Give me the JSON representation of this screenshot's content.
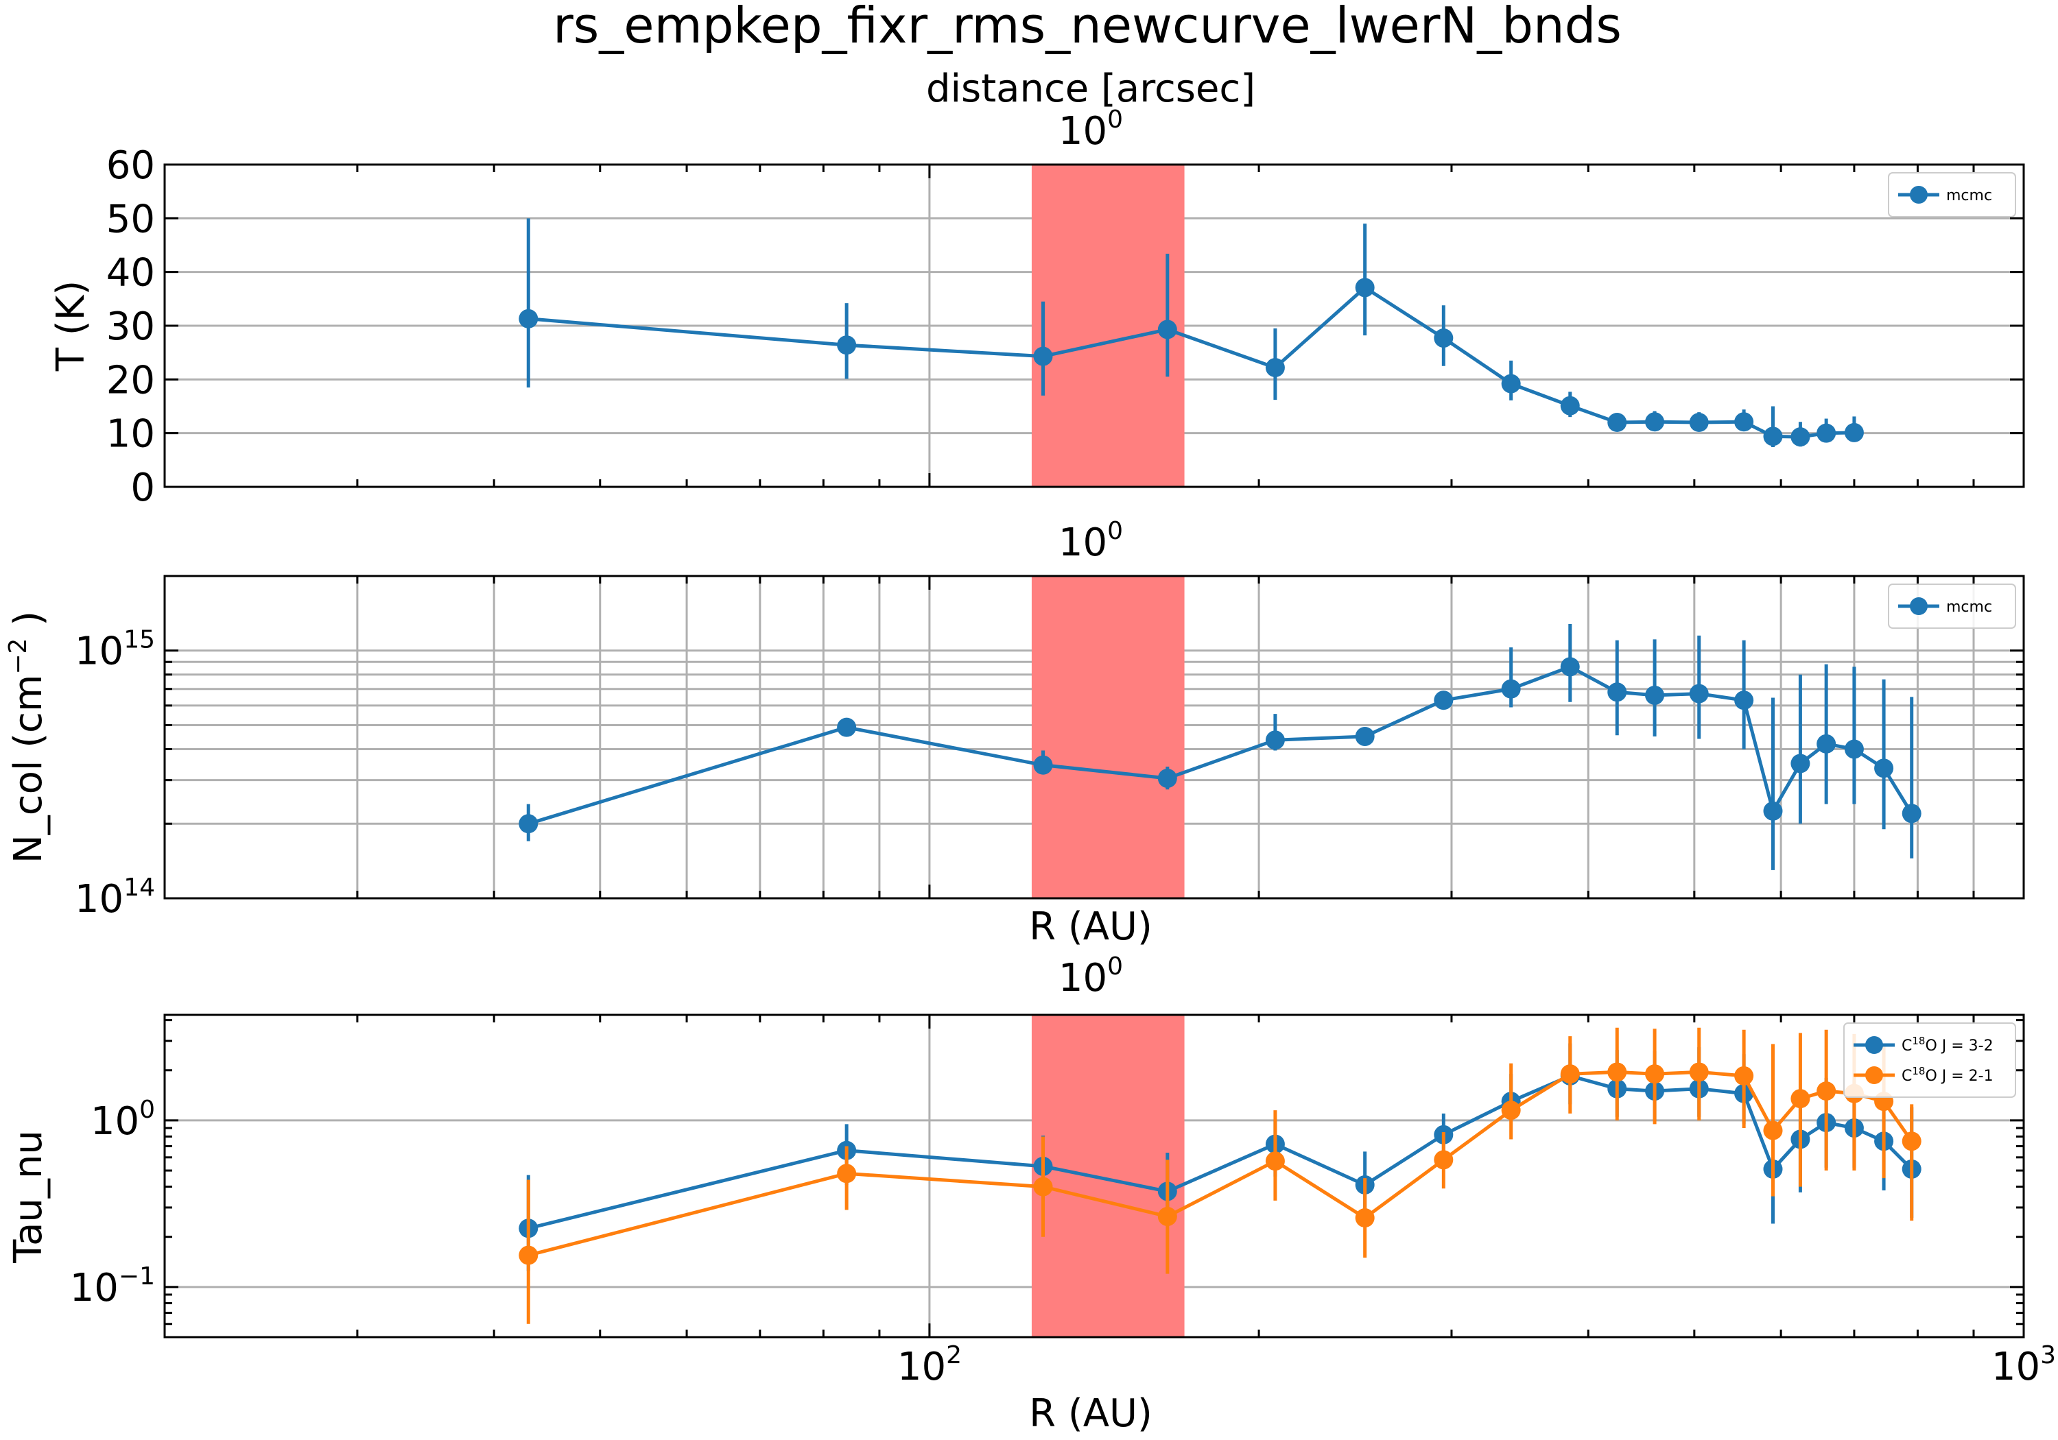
{
  "figure": {
    "title": "rs_empkep_fixr_rms_newcurve_lwerN_bnds"
  },
  "colors": {
    "series1": "#1f77b4",
    "series2": "#ff7f0e",
    "shade": "#ff7f7f",
    "grid": "#b0b0b0"
  },
  "chart_data": [
    {
      "type": "line",
      "panel": "temperature",
      "ylabel": "T (K)",
      "xlabel": "",
      "top_axis_label": "distance [arcsec]",
      "top_tick_label": "10^0",
      "xscale": "log",
      "yscale": "linear",
      "xlim": [
        20,
        1000
      ],
      "ylim": [
        0,
        60
      ],
      "yticks": [
        "0",
        "10",
        "20",
        "30",
        "40",
        "50",
        "60"
      ],
      "shaded_region": [
        124,
        171
      ],
      "grid": true,
      "legend": "top-right",
      "series": [
        {
          "name": "mcmc",
          "x": [
            43,
            84,
            127,
            165,
            207,
            250,
            295,
            340,
            385,
            425,
            460,
            505,
            555,
            590,
            625,
            660,
            700
          ],
          "y": [
            31.3,
            26.4,
            24.3,
            29.3,
            22.2,
            37.1,
            27.7,
            19.2,
            15.1,
            12.0,
            12.1,
            12.0,
            12.1,
            9.4,
            9.3,
            10.0,
            10.1
          ],
          "err_low": [
            12.8,
            6.3,
            7.3,
            8.8,
            6.0,
            8.9,
            5.2,
            3.1,
            2.1,
            1.2,
            1.5,
            1.5,
            1.5,
            2.0,
            1.8,
            1.5,
            1.3
          ],
          "err_high": [
            18.7,
            7.8,
            10.2,
            14.1,
            7.3,
            11.9,
            6.1,
            4.3,
            2.6,
            1.5,
            2.0,
            1.9,
            2.3,
            5.6,
            2.8,
            2.7,
            3.0
          ]
        }
      ]
    },
    {
      "type": "line",
      "panel": "column_density",
      "ylabel": "N_col (cm^-2 )",
      "xlabel": "R (AU)",
      "top_tick_label": "10^0",
      "xscale": "log",
      "yscale": "log",
      "xlim": [
        20,
        1000
      ],
      "ylim": [
        100000000000000.0,
        2000000000000000.0
      ],
      "yticks": [
        "10^14",
        "10^15"
      ],
      "shaded_region": [
        124,
        171
      ],
      "grid": true,
      "legend": "top-right",
      "series": [
        {
          "name": "mcmc",
          "x": [
            43,
            84,
            127,
            165,
            207,
            250,
            295,
            340,
            385,
            425,
            460,
            505,
            555,
            590,
            625,
            660,
            700,
            745,
            790
          ],
          "y": [
            200000000000000.0,
            490000000000000.0,
            345000000000000.0,
            305000000000000.0,
            435000000000000.0,
            450000000000000.0,
            630000000000000.0,
            700000000000000.0,
            860000000000000.0,
            680000000000000.0,
            660000000000000.0,
            670000000000000.0,
            630000000000000.0,
            225000000000000.0,
            350000000000000.0,
            420000000000000.0,
            400000000000000.0,
            335000000000000.0,
            220000000000000.0
          ],
          "err_low": [
            30000000000000.0,
            20000000000000.0,
            25000000000000.0,
            30000000000000.0,
            40000000000000.0,
            15000000000000.0,
            25000000000000.0,
            110000000000000.0,
            240000000000000.0,
            225000000000000.0,
            210000000000000.0,
            230000000000000.0,
            230000000000000.0,
            95000000000000.0,
            150000000000000.0,
            180000000000000.0,
            160000000000000.0,
            145000000000000.0,
            75000000000000.0
          ],
          "err_high": [
            40000000000000.0,
            25000000000000.0,
            50000000000000.0,
            35000000000000.0,
            120000000000000.0,
            30000000000000.0,
            40000000000000.0,
            330000000000000.0,
            420000000000000.0,
            420000000000000.0,
            450000000000000.0,
            480000000000000.0,
            470000000000000.0,
            420000000000000.0,
            450000000000000.0,
            460000000000000.0,
            460000000000000.0,
            430000000000000.0,
            430000000000000.0
          ]
        }
      ]
    },
    {
      "type": "line",
      "panel": "optical_depth",
      "ylabel": "Tau_nu",
      "xlabel": "R (AU)",
      "top_tick_label": "10^0",
      "xscale": "log",
      "yscale": "log",
      "xlim": [
        20,
        1000
      ],
      "ylim": [
        0.05,
        4.3
      ],
      "xticks": [
        "10^2",
        "10^3"
      ],
      "yticks": [
        "10^-1",
        "10^0"
      ],
      "shaded_region": [
        124,
        171
      ],
      "grid": true,
      "legend": "top-right",
      "series": [
        {
          "name": "C18O J = 3-2",
          "x": [
            43,
            84,
            127,
            165,
            207,
            250,
            295,
            340,
            385,
            425,
            460,
            505,
            555,
            590,
            625,
            660,
            700,
            745,
            790
          ],
          "y": [
            0.225,
            0.66,
            0.53,
            0.375,
            0.72,
            0.41,
            0.82,
            1.3,
            1.85,
            1.55,
            1.5,
            1.55,
            1.45,
            0.51,
            0.77,
            0.97,
            0.9,
            0.75,
            0.51
          ],
          "err_low": [
            0.1,
            0.25,
            0.2,
            0.1,
            0.26,
            0.15,
            0.25,
            0.3,
            0.6,
            0.5,
            0.5,
            0.5,
            0.5,
            0.27,
            0.4,
            0.45,
            0.38,
            0.37,
            0.25
          ],
          "err_high": [
            0.245,
            0.29,
            0.28,
            0.265,
            0.28,
            0.24,
            0.28,
            0.6,
            1.05,
            1.1,
            1.1,
            1.2,
            1.05,
            0.49,
            0.73,
            0.83,
            0.85,
            0.7,
            0.69
          ]
        },
        {
          "name": "C18O J = 2-1",
          "x": [
            43,
            84,
            127,
            165,
            207,
            250,
            295,
            340,
            385,
            425,
            460,
            505,
            555,
            590,
            625,
            660,
            700,
            745,
            790
          ],
          "y": [
            0.155,
            0.48,
            0.4,
            0.265,
            0.57,
            0.26,
            0.58,
            1.15,
            1.9,
            1.95,
            1.9,
            1.95,
            1.85,
            0.87,
            1.35,
            1.5,
            1.45,
            1.3,
            0.75
          ],
          "err_low": [
            0.095,
            0.19,
            0.2,
            0.145,
            0.24,
            0.11,
            0.19,
            0.38,
            0.8,
            0.95,
            0.95,
            0.95,
            0.95,
            0.52,
            0.95,
            1.0,
            0.95,
            0.85,
            0.5
          ],
          "err_high": [
            0.285,
            0.22,
            0.4,
            0.315,
            0.58,
            0.19,
            0.27,
            1.05,
            1.3,
            1.65,
            1.65,
            1.65,
            1.65,
            2.0,
            2.0,
            2.0,
            1.85,
            1.6,
            0.5
          ]
        }
      ]
    }
  ]
}
